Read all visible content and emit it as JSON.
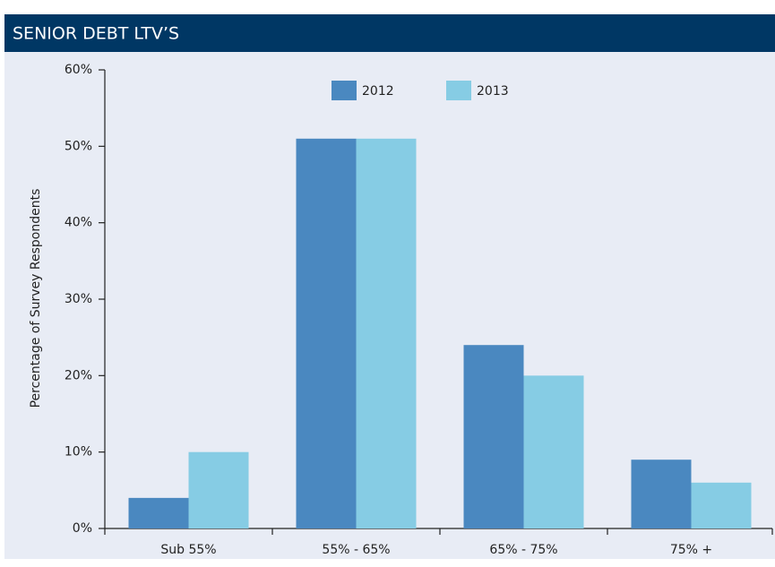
{
  "chart_data": {
    "type": "bar",
    "title": "SENIOR DEBT LTV’S",
    "y_label": "Percentage of Survey Respondents",
    "categories": [
      "Sub 55%",
      "55% - 65%",
      "65% - 75%",
      "75% +"
    ],
    "series": [
      {
        "name": "2012",
        "color": "#4a88c0",
        "values": [
          4,
          51,
          24,
          9
        ]
      },
      {
        "name": "2013",
        "color": "#86cce4",
        "values": [
          10,
          51,
          20,
          6
        ]
      }
    ],
    "ylim": [
      0,
      60
    ],
    "yticks": [
      {
        "value": 0,
        "label": "0%"
      },
      {
        "value": 10,
        "label": "10%"
      },
      {
        "value": 20,
        "label": "20%"
      },
      {
        "value": 30,
        "label": "30%"
      },
      {
        "value": 40,
        "label": "40%"
      },
      {
        "value": 50,
        "label": "50%"
      },
      {
        "value": 60,
        "label": "60%"
      }
    ],
    "legend": "top"
  }
}
